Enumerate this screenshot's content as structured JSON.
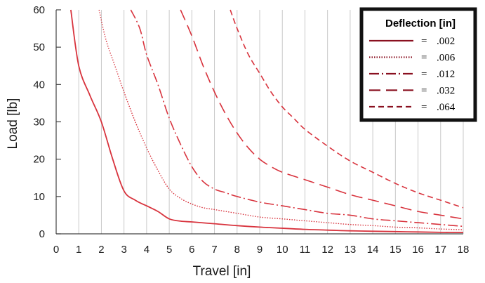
{
  "chart_data": {
    "type": "line",
    "xlabel": "Travel [in]",
    "ylabel": "Load [lb]",
    "xlim": [
      0,
      18
    ],
    "ylim": [
      0,
      60
    ],
    "x_ticks": [
      "0",
      "1",
      "2",
      "3",
      "4",
      "5",
      "6",
      "7",
      "8",
      "9",
      "10",
      "11",
      "12",
      "13",
      "14",
      "15",
      "16",
      "17",
      "18"
    ],
    "y_ticks": [
      "0",
      "10",
      "20",
      "30",
      "40",
      "50",
      "60"
    ],
    "grid": "vertical",
    "legend": {
      "title": "Deflection [in]",
      "placement": "top-right",
      "entries": [
        {
          "style": "solid",
          "eq": "=",
          "label": ".002"
        },
        {
          "style": "dotted",
          "eq": "=",
          "label": ".006"
        },
        {
          "style": "dashdot",
          "eq": "=",
          "label": ".012"
        },
        {
          "style": "longdash",
          "eq": "=",
          "label": ".032"
        },
        {
          "style": "dash",
          "eq": "=",
          "label": ".064"
        }
      ]
    },
    "series_color": "#d8333d",
    "series": [
      {
        "name": ".002",
        "style": "solid",
        "x": [
          0.65,
          1,
          1.5,
          2,
          2.5,
          3,
          3.5,
          4,
          4.5,
          5,
          5.5,
          6,
          7,
          8,
          9,
          10,
          11,
          12,
          13,
          14,
          15,
          16,
          17,
          18
        ],
        "y": [
          60,
          45,
          37,
          30,
          20,
          11.5,
          9,
          7.5,
          6,
          4,
          3.4,
          3.2,
          2.7,
          2.2,
          1.8,
          1.5,
          1.2,
          1.0,
          0.8,
          0.7,
          0.6,
          0.5,
          0.4,
          0.35
        ]
      },
      {
        "name": ".006",
        "style": "dotted",
        "x": [
          1.9,
          2.2,
          2.6,
          3,
          3.5,
          4,
          4.5,
          5,
          5.5,
          6,
          6.5,
          7,
          8,
          9,
          10,
          11,
          12,
          13,
          14,
          15,
          16,
          17,
          18
        ],
        "y": [
          60,
          52,
          45,
          38,
          30,
          23,
          17,
          12,
          9.5,
          8,
          7,
          6.5,
          5.5,
          4.5,
          4,
          3.5,
          3,
          2.5,
          2.2,
          1.8,
          1.6,
          1.3,
          1.1
        ]
      },
      {
        "name": ".012",
        "style": "dashdot",
        "x": [
          3.3,
          3.7,
          4,
          4.5,
          5,
          5.5,
          6,
          6.5,
          7,
          7.5,
          8,
          9,
          10,
          11,
          12,
          13,
          14,
          15,
          16,
          17,
          18
        ],
        "y": [
          60,
          55,
          48,
          40,
          31,
          24,
          18,
          14,
          12,
          11,
          10,
          8.5,
          7.5,
          6.5,
          5.5,
          5,
          4,
          3.5,
          3,
          2.5,
          2
        ]
      },
      {
        "name": ".032",
        "style": "longdash",
        "x": [
          5.5,
          6,
          6.5,
          7,
          7.5,
          8,
          8.5,
          9,
          9.5,
          10,
          11,
          12,
          13,
          14,
          15,
          16,
          17,
          18
        ],
        "y": [
          60,
          53,
          45,
          38,
          32,
          27,
          23,
          20,
          18,
          16.5,
          14.5,
          12.5,
          10.5,
          9,
          7.5,
          6,
          5,
          4
        ]
      },
      {
        "name": ".064",
        "style": "dash",
        "x": [
          7.7,
          8,
          8.5,
          9,
          9.5,
          10,
          10.5,
          11,
          12,
          13,
          14,
          15,
          16,
          17,
          18
        ],
        "y": [
          60,
          55,
          48,
          43,
          38,
          34,
          31,
          28,
          23.5,
          19.5,
          16.5,
          13.5,
          11,
          9,
          7
        ]
      }
    ]
  }
}
